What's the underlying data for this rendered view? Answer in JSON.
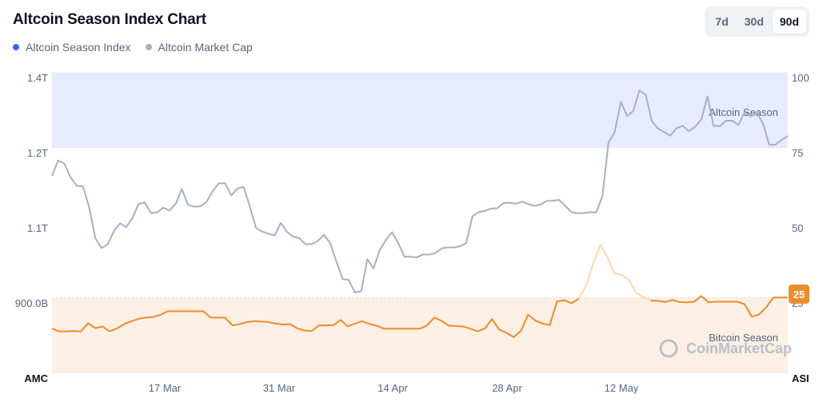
{
  "header": {
    "title": "Altcoin Season Index Chart"
  },
  "legend": [
    {
      "label": "Altcoin Season Index",
      "color": "#3861fb"
    },
    {
      "label": "Altcoin Market Cap",
      "color": "#a6b0c3"
    }
  ],
  "range_buttons": [
    {
      "label": "7d",
      "active": false
    },
    {
      "label": "30d",
      "active": false
    },
    {
      "label": "90d",
      "active": true
    }
  ],
  "watermark": "CoinMarketCap",
  "chart_data": {
    "type": "line",
    "x_tick_labels": [
      "17 Mar",
      "31 Mar",
      "14 Apr",
      "28 Apr",
      "12 May"
    ],
    "left_axis": {
      "ticks": [
        "1.4T",
        "1.2T",
        "1.1T",
        "900.0B"
      ],
      "corner_label": "AMC"
    },
    "right_axis": {
      "ticks": [
        "100",
        "75",
        "50",
        "25"
      ],
      "corner_label": "ASI",
      "range": [
        0,
        100
      ]
    },
    "zones": [
      {
        "label": "Altcoin Season",
        "from": 75,
        "to": 100,
        "color": "#e8ebfd"
      },
      {
        "label": "Bitcoin Season",
        "from": 0,
        "to": 25,
        "color": "#fcefe3"
      }
    ],
    "current_value": "25",
    "series": [
      {
        "name": "Altcoin Market Cap",
        "color": "#a6b0c3",
        "values": [
          65.6,
          70.7,
          69.7,
          65.1,
          62.3,
          62.1,
          55.2,
          44.9,
          41.5,
          42.7,
          47.1,
          49.8,
          48.5,
          51.5,
          56.2,
          56.7,
          53.2,
          53.4,
          55.0,
          54.0,
          56.2,
          61.2,
          55.9,
          55.3,
          55.4,
          56.9,
          60.5,
          63.1,
          63.1,
          59.1,
          61.4,
          61.9,
          55.3,
          48.2,
          47.0,
          46.3,
          45.7,
          49.9,
          46.9,
          45.3,
          44.8,
          42.8,
          42.8,
          43.9,
          45.9,
          43.1,
          37.0,
          31.2,
          30.8,
          26.7,
          27.1,
          37.8,
          34.7,
          40.8,
          44.2,
          46.8,
          43.2,
          38.6,
          38.6,
          38.4,
          39.4,
          39.3,
          39.8,
          41.4,
          41.7,
          41.7,
          42.1,
          43.2,
          52.1,
          53.5,
          53.9,
          54.7,
          54.8,
          56.5,
          56.6,
          56.3,
          57.0,
          56.2,
          55.6,
          56.0,
          57.2,
          57.3,
          57.6,
          55.6,
          53.5,
          53.1,
          53.2,
          53.5,
          53.4,
          58.6,
          76.7,
          80.2,
          90.3,
          85.6,
          87.2,
          94.1,
          92.7,
          83.9,
          81.4,
          80.2,
          79.0,
          81.5,
          82.3,
          80.5,
          81.9,
          84.4,
          92.1,
          82.3,
          82.2,
          84.0,
          84.0,
          82.6,
          86.8,
          85.4,
          86.7,
          82.9,
          75.9,
          76.0,
          77.6,
          78.9
        ]
      },
      {
        "name": "Altcoin Season Index",
        "color": "#ea8d2f",
        "color_peak": "#fcd7ad",
        "values": [
          14.6,
          13.7,
          13.7,
          13.8,
          13.7,
          16.4,
          14.8,
          15.3,
          13.7,
          14.7,
          16.1,
          17.1,
          17.9,
          18.3,
          18.5,
          19.2,
          20.4,
          20.4,
          20.4,
          20.4,
          20.4,
          20.4,
          18.3,
          18.3,
          18.3,
          15.7,
          16.1,
          16.8,
          17.1,
          17.0,
          16.8,
          16.3,
          16.0,
          16.1,
          14.7,
          14.0,
          13.8,
          15.7,
          15.7,
          15.8,
          17.5,
          15.4,
          16.3,
          17.1,
          16.2,
          15.6,
          14.6,
          14.6,
          14.6,
          14.6,
          14.6,
          14.6,
          15.7,
          18.3,
          17.2,
          15.6,
          15.5,
          15.3,
          14.6,
          13.7,
          14.7,
          17.8,
          14.3,
          13.2,
          11.8,
          13.9,
          19.3,
          17.3,
          16.3,
          15.8,
          23.7,
          24.1,
          23.1,
          24.6,
          28.7,
          36.3,
          42.6,
          38.3,
          33.1,
          32.5,
          30.8,
          26.5,
          25.1,
          24.0,
          23.9,
          23.5,
          24.2,
          23.5,
          23.4,
          23.6,
          25.5,
          23.4,
          23.6,
          23.6,
          23.6,
          23.6,
          22.8,
          18.6,
          19.3,
          21.7,
          25.0,
          25.0,
          25.0
        ]
      }
    ]
  }
}
